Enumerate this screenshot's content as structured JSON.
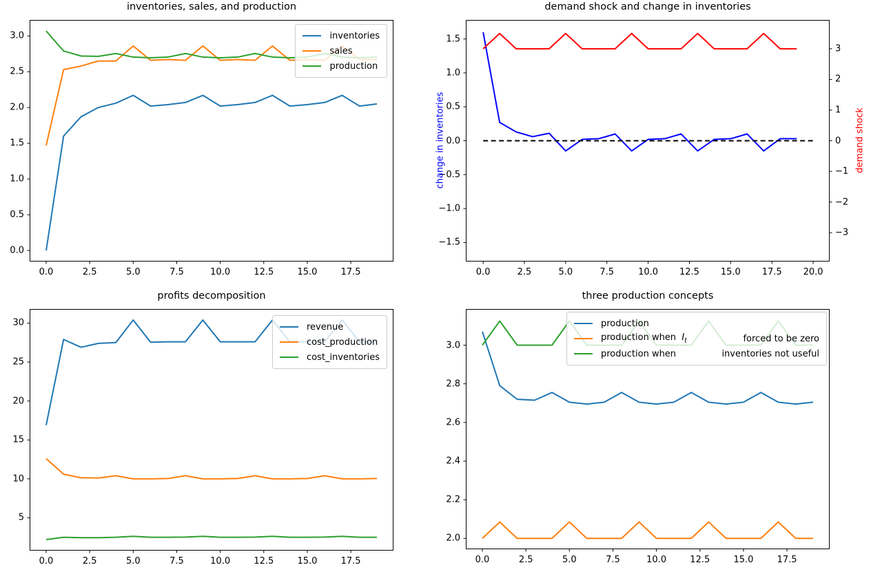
{
  "figure": {
    "background": "#ffffff"
  },
  "colors": {
    "mpl_blue": "#1f77b4",
    "mpl_orange": "#ff7f0e",
    "mpl_green": "#2ca02c",
    "pure_blue": "#0000ff",
    "pure_red": "#ff0000",
    "black": "#000000",
    "spine": "#000000",
    "legend_edge": "#cccccc"
  },
  "chart_data": [
    {
      "id": "inventories-sales-production",
      "type": "line",
      "title": "inventories, sales, and production",
      "x": [
        0,
        1,
        2,
        3,
        4,
        5,
        6,
        7,
        8,
        9,
        10,
        11,
        12,
        13,
        14,
        15,
        16,
        17,
        18,
        19
      ],
      "xlim": [
        -0.95,
        19.95
      ],
      "ylim": [
        -0.154,
        3.224
      ],
      "xticks": {
        "values": [
          0,
          2.5,
          5,
          7.5,
          10,
          12.5,
          15,
          17.5
        ],
        "labels": [
          "0.0",
          "2.5",
          "5.0",
          "7.5",
          "10.0",
          "12.5",
          "15.0",
          "17.5"
        ]
      },
      "yticks": {
        "values": [
          0,
          0.5,
          1,
          1.5,
          2,
          2.5,
          3
        ],
        "labels": [
          "0.0",
          "0.5",
          "1.0",
          "1.5",
          "2.0",
          "2.5",
          "3.0"
        ]
      },
      "grid": false,
      "series": [
        {
          "name": "inventories",
          "color": "#1f77b4",
          "values": [
            0.0,
            1.6,
            1.87,
            2.0,
            2.06,
            2.17,
            2.02,
            2.04,
            2.07,
            2.17,
            2.02,
            2.04,
            2.07,
            2.17,
            2.02,
            2.04,
            2.07,
            2.17,
            2.02,
            2.05
          ]
        },
        {
          "name": "sales",
          "color": "#ff7f0e",
          "values": [
            1.47,
            2.53,
            2.58,
            2.65,
            2.65,
            2.86,
            2.66,
            2.67,
            2.66,
            2.86,
            2.66,
            2.67,
            2.66,
            2.86,
            2.66,
            2.67,
            2.66,
            2.86,
            2.67,
            2.67
          ]
        },
        {
          "name": "production",
          "color": "#2ca02c",
          "values": [
            3.07,
            2.79,
            2.72,
            2.715,
            2.755,
            2.705,
            2.695,
            2.705,
            2.755,
            2.705,
            2.695,
            2.705,
            2.755,
            2.705,
            2.695,
            2.705,
            2.755,
            2.705,
            2.695,
            2.705
          ]
        }
      ],
      "legend": {
        "loc": "upper right",
        "entries": [
          {
            "text": "inventories"
          },
          {
            "text": "sales"
          },
          {
            "text": "production"
          }
        ]
      }
    },
    {
      "id": "demand-shock-change-in-inventories",
      "type": "line",
      "title": "demand shock and change in inventories",
      "x": [
        0,
        1,
        2,
        3,
        4,
        5,
        6,
        7,
        8,
        9,
        10,
        11,
        12,
        13,
        14,
        15,
        16,
        17,
        18,
        19
      ],
      "xlim": [
        -1.05,
        21.0
      ],
      "ylim": [
        -1.78,
        1.78
      ],
      "ylim_right": [
        -3.94,
        3.94
      ],
      "xticks": {
        "values": [
          0,
          2.5,
          5,
          7.5,
          10,
          12.5,
          15,
          17.5,
          20
        ],
        "labels": [
          "0.0",
          "2.5",
          "5.0",
          "7.5",
          "10.0",
          "12.5",
          "15.0",
          "17.5",
          "20.0"
        ]
      },
      "yticks": {
        "values": [
          -1.5,
          -1,
          -0.5,
          0,
          0.5,
          1,
          1.5
        ],
        "labels": [
          "−1.5",
          "−1.0",
          "−0.5",
          "0.0",
          "0.5",
          "1.0",
          "1.5"
        ]
      },
      "yticks_right": {
        "values": [
          -3,
          -2,
          -1,
          0,
          1,
          2,
          3
        ],
        "labels": [
          "−3",
          "−2",
          "−1",
          "0",
          "1",
          "2",
          "3"
        ]
      },
      "ylabel_left": {
        "text": "change in inventories",
        "color": "#0000ff"
      },
      "ylabel_right": {
        "text": "demand shock",
        "color": "#ff0000"
      },
      "grid": false,
      "series": [
        {
          "name": "change in inventories",
          "color": "#0000ff",
          "values": [
            1.6,
            0.27,
            0.13,
            0.06,
            0.11,
            -0.15,
            0.02,
            0.03,
            0.1,
            -0.15,
            0.02,
            0.03,
            0.1,
            -0.15,
            0.02,
            0.03,
            0.1,
            -0.15,
            0.03,
            0.03
          ]
        },
        {
          "name": "zero line",
          "color": "#000000",
          "dashed": true,
          "x": [
            0,
            20
          ],
          "values": [
            0,
            0
          ]
        },
        {
          "name": "demand shock",
          "color": "#ff0000",
          "axis": "right",
          "values": [
            3,
            3.5,
            3,
            3,
            3,
            3.5,
            3,
            3,
            3,
            3.5,
            3,
            3,
            3,
            3.5,
            3,
            3,
            3,
            3.5,
            3,
            3
          ]
        }
      ],
      "legend": null
    },
    {
      "id": "profits-decomposition",
      "type": "line",
      "title": "profits decomposition",
      "x": [
        0,
        1,
        2,
        3,
        4,
        5,
        6,
        7,
        8,
        9,
        10,
        11,
        12,
        13,
        14,
        15,
        16,
        17,
        18,
        19
      ],
      "xlim": [
        -0.95,
        19.95
      ],
      "ylim": [
        0.79,
        31.81
      ],
      "xticks": {
        "values": [
          0,
          2.5,
          5,
          7.5,
          10,
          12.5,
          15,
          17.5
        ],
        "labels": [
          "0.0",
          "2.5",
          "5.0",
          "7.5",
          "10.0",
          "12.5",
          "15.0",
          "17.5"
        ]
      },
      "yticks": {
        "values": [
          5,
          10,
          15,
          20,
          25,
          30
        ],
        "labels": [
          "5",
          "10",
          "15",
          "20",
          "25",
          "30"
        ]
      },
      "grid": false,
      "series": [
        {
          "name": "revenue",
          "color": "#1f77b4",
          "values": [
            16.9,
            27.9,
            26.9,
            27.4,
            27.5,
            30.4,
            27.55,
            27.6,
            27.6,
            30.4,
            27.6,
            27.6,
            27.6,
            30.4,
            27.6,
            27.6,
            27.6,
            30.4,
            27.6,
            27.6
          ]
        },
        {
          "name": "cost_production",
          "color": "#ff7f0e",
          "values": [
            12.6,
            10.6,
            10.15,
            10.1,
            10.4,
            10.0,
            10.0,
            10.05,
            10.4,
            10.0,
            10.0,
            10.05,
            10.4,
            10.0,
            10.0,
            10.05,
            10.4,
            10.0,
            10.0,
            10.05
          ]
        },
        {
          "name": "cost_inventories",
          "color": "#2ca02c",
          "values": [
            2.2,
            2.5,
            2.45,
            2.45,
            2.5,
            2.62,
            2.5,
            2.5,
            2.52,
            2.62,
            2.5,
            2.5,
            2.52,
            2.62,
            2.5,
            2.5,
            2.52,
            2.62,
            2.5,
            2.5
          ]
        }
      ],
      "legend": {
        "loc": "upper right",
        "entries": [
          {
            "text": "revenue"
          },
          {
            "text": "cost_production"
          },
          {
            "text": "cost_inventories"
          }
        ]
      }
    },
    {
      "id": "three-production-concepts",
      "type": "line",
      "title": "three production concepts",
      "x": [
        0,
        1,
        2,
        3,
        4,
        5,
        6,
        7,
        8,
        9,
        10,
        11,
        12,
        13,
        14,
        15,
        16,
        17,
        18,
        19
      ],
      "xlim": [
        -0.95,
        19.95
      ],
      "ylim": [
        1.944,
        3.187
      ],
      "xticks": {
        "values": [
          0,
          2.5,
          5,
          7.5,
          10,
          12.5,
          15,
          17.5
        ],
        "labels": [
          "0.0",
          "2.5",
          "5.0",
          "7.5",
          "10.0",
          "12.5",
          "15.0",
          "17.5"
        ]
      },
      "yticks": {
        "values": [
          2.0,
          2.2,
          2.4,
          2.6,
          2.8,
          3.0
        ],
        "labels": [
          "2.0",
          "2.2",
          "2.4",
          "2.6",
          "2.8",
          "3.0"
        ]
      },
      "grid": false,
      "series": [
        {
          "name": "production",
          "color": "#1f77b4",
          "values": [
            3.07,
            2.79,
            2.72,
            2.715,
            2.755,
            2.705,
            2.695,
            2.705,
            2.755,
            2.705,
            2.695,
            2.705,
            2.755,
            2.705,
            2.695,
            2.705,
            2.755,
            2.705,
            2.695,
            2.705
          ]
        },
        {
          "name": "production when I_t forced to be zero",
          "color": "#ff7f0e",
          "values": [
            2.0,
            2.085,
            2.0,
            2.0,
            2.0,
            2.085,
            2.0,
            2.0,
            2.0,
            2.085,
            2.0,
            2.0,
            2.0,
            2.085,
            2.0,
            2.0,
            2.0,
            2.085,
            2.0,
            2.0
          ]
        },
        {
          "name": "production when inventories not useful",
          "color": "#2ca02c",
          "values": [
            3.0,
            3.125,
            3.0,
            3.0,
            3.0,
            3.125,
            3.0,
            3.0,
            3.0,
            3.125,
            3.0,
            3.0,
            3.0,
            3.125,
            3.0,
            3.0,
            3.0,
            3.125,
            3.0,
            3.0
          ]
        }
      ],
      "legend": {
        "loc": "upper right wide",
        "entries": [
          {
            "text": "production"
          },
          {
            "text": "production when",
            "math_var": "I",
            "math_sub": "t",
            "text_right": "forced to be zero"
          },
          {
            "text": "production when",
            "text_right": "inventories not useful"
          }
        ]
      }
    }
  ]
}
